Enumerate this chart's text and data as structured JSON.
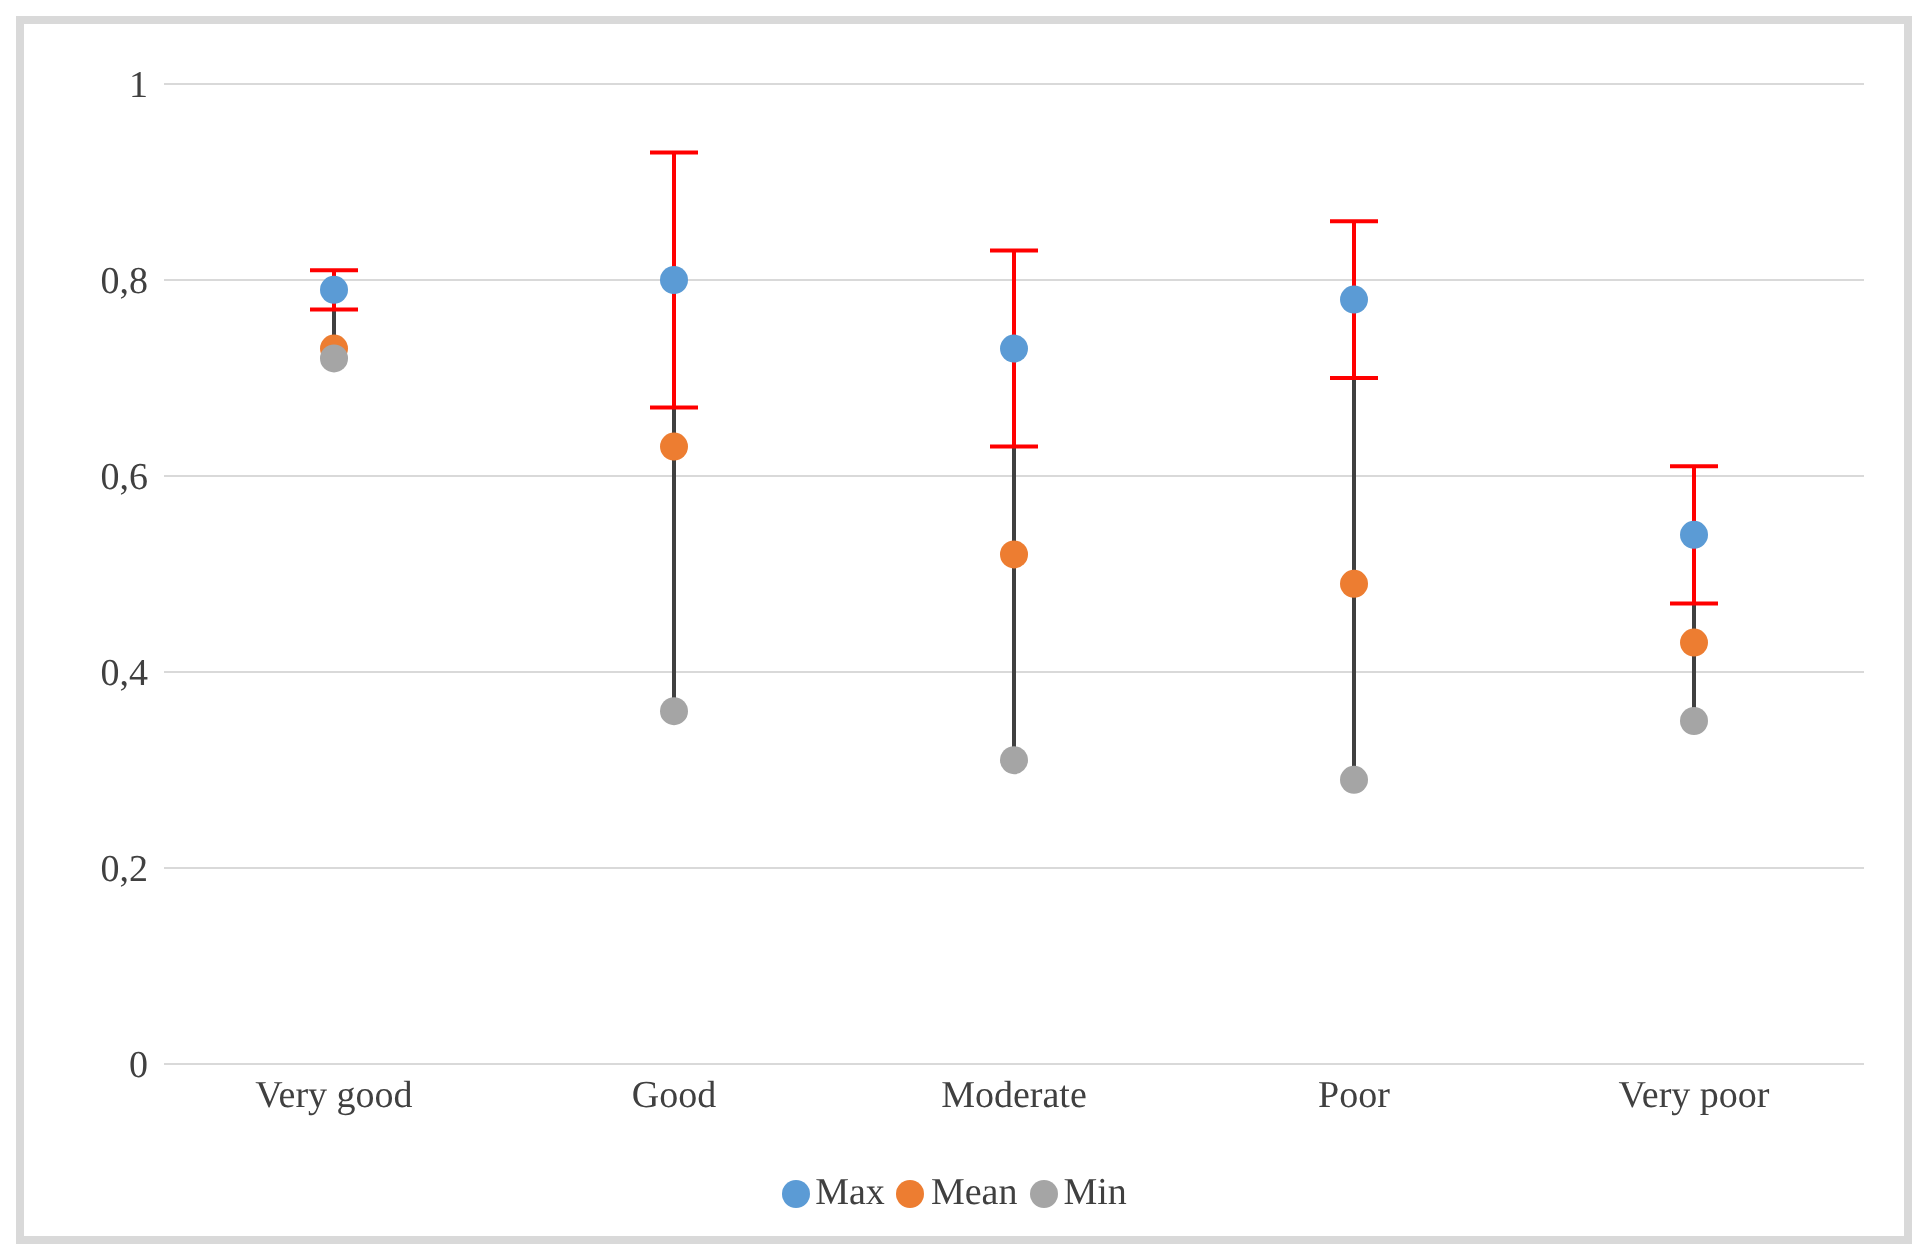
{
  "chart_data": {
    "type": "scatter",
    "categories": [
      "Very good",
      "Good",
      "Moderate",
      "Poor",
      "Very poor"
    ],
    "series": [
      {
        "name": "Max",
        "color": "#5b9bd5",
        "values": [
          0.79,
          0.8,
          0.73,
          0.78,
          0.54
        ],
        "errors": [
          0.02,
          0.13,
          0.1,
          0.08,
          0.07
        ]
      },
      {
        "name": "Mean",
        "color": "#ed7d31",
        "values": [
          0.73,
          0.63,
          0.52,
          0.49,
          0.43
        ]
      },
      {
        "name": "Min",
        "color": "#a5a5a5",
        "values": [
          0.72,
          0.36,
          0.31,
          0.29,
          0.35
        ]
      }
    ],
    "ylim": [
      0,
      1
    ],
    "yticks": [
      {
        "value": 0,
        "label": "0"
      },
      {
        "value": 0.2,
        "label": "0,2"
      },
      {
        "value": 0.4,
        "label": "0,4"
      },
      {
        "value": 0.6,
        "label": "0,6"
      },
      {
        "value": 0.8,
        "label": "0,8"
      },
      {
        "value": 1,
        "label": "1"
      }
    ],
    "grid": "y",
    "legend": "bottom",
    "marker": "circle"
  }
}
